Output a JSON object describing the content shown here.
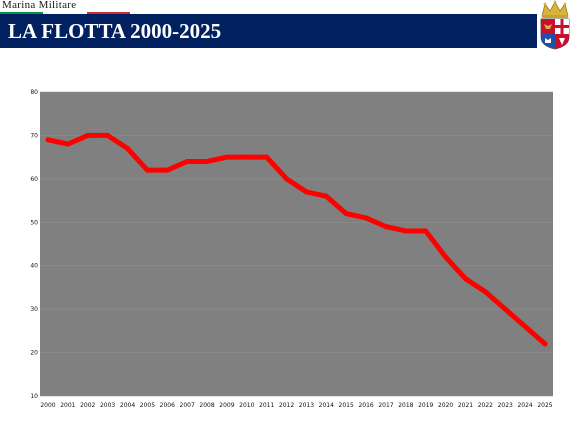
{
  "header": {
    "brand": "Marina Militare",
    "title": "LA FLOTTA 2000-2025",
    "colors": {
      "banner": "#00205f",
      "flag_green": "#009246",
      "flag_white": "#ffffff",
      "flag_red": "#ce2b37"
    },
    "crest_icon": "navy-coat-of-arms-icon"
  },
  "chart_data": {
    "type": "line",
    "title": "",
    "xlabel": "",
    "ylabel": "",
    "x": [
      "2000",
      "2001",
      "2002",
      "2003",
      "2004",
      "2005",
      "2006",
      "2007",
      "2008",
      "2009",
      "2010",
      "2011",
      "2012",
      "2013",
      "2014",
      "2015",
      "2016",
      "2017",
      "2018",
      "2019",
      "2020",
      "2021",
      "2022",
      "2023",
      "2024",
      "2025"
    ],
    "series": [
      {
        "values": [
          69,
          68,
          70,
          70,
          67,
          62,
          62,
          64,
          64,
          65,
          65,
          65,
          60,
          57,
          56,
          52,
          51,
          49,
          48,
          48,
          42,
          37,
          34,
          30,
          26,
          22
        ],
        "color": "#ff0000"
      }
    ],
    "yticks": [
      "10",
      "20",
      "30",
      "40",
      "50",
      "60",
      "70",
      "80"
    ],
    "ylim": [
      10,
      80
    ],
    "grid": true,
    "legend": "none",
    "colors": {
      "plot_background": "#808080",
      "gridline": "#8e8e8e",
      "line": "#ff0000"
    }
  }
}
